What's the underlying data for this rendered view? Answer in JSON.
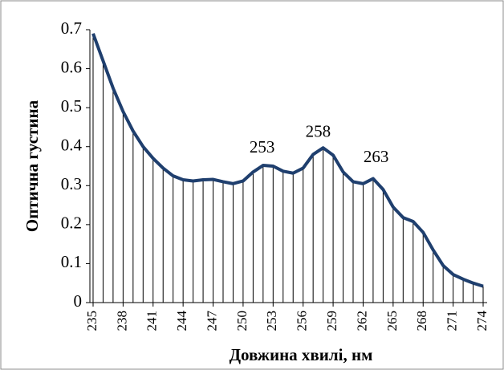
{
  "chart_data": {
    "type": "line",
    "x_label": "Довжина хвилі, нм",
    "y_label": "Оптична густина",
    "x": [
      235,
      236,
      237,
      238,
      239,
      240,
      241,
      242,
      243,
      244,
      245,
      246,
      247,
      248,
      249,
      250,
      251,
      252,
      253,
      254,
      255,
      256,
      257,
      258,
      259,
      260,
      261,
      262,
      263,
      264,
      265,
      266,
      267,
      268,
      269,
      270,
      271,
      272,
      273,
      274
    ],
    "series": [
      {
        "color": "#1f3f6e",
        "values": [
          0.69,
          0.62,
          0.55,
          0.49,
          0.44,
          0.4,
          0.37,
          0.345,
          0.325,
          0.315,
          0.312,
          0.315,
          0.316,
          0.31,
          0.305,
          0.312,
          0.335,
          0.352,
          0.35,
          0.337,
          0.332,
          0.345,
          0.38,
          0.397,
          0.378,
          0.335,
          0.31,
          0.305,
          0.318,
          0.29,
          0.245,
          0.218,
          0.208,
          0.18,
          0.135,
          0.095,
          0.072,
          0.06,
          0.05,
          0.042
        ]
      }
    ],
    "drop_lines": true,
    "xlim": [
      234.68,
      274.4
    ],
    "xticks": [
      235,
      238,
      241,
      244,
      247,
      250,
      253,
      256,
      259,
      262,
      265,
      268,
      271,
      274
    ],
    "ylim": [
      0,
      0.7
    ],
    "yticks": [
      0,
      0.1,
      0.2,
      0.3,
      0.4,
      0.5,
      0.6,
      0.7
    ],
    "annotations": [
      {
        "text": "253",
        "x": 251.9,
        "y": 0.395
      },
      {
        "text": "258",
        "x": 257.5,
        "y": 0.435
      },
      {
        "text": "263",
        "x": 263.3,
        "y": 0.37
      }
    ]
  }
}
